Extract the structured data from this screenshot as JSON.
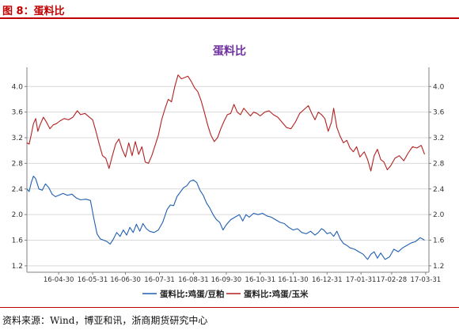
{
  "figure": {
    "label": "图 8：蛋料比"
  },
  "source": {
    "text": "资料来源：Wind，博亚和讯，浙商期货研究中心"
  },
  "colors": {
    "header": "#c00000",
    "title": "#7030a0",
    "series1": "#1f5fb0",
    "series2": "#b22222",
    "grid": "#d9d9d9"
  },
  "chart_data": {
    "type": "line",
    "title": "蛋料比",
    "xlabel": "",
    "ylabel": "",
    "ylim": [
      1.1,
      4.3
    ],
    "yticks": [
      "1.2",
      "1.6",
      "2.0",
      "2.4",
      "2.8",
      "3.2",
      "3.6",
      "4.0"
    ],
    "xticks": [
      "16-04-30",
      "16-05-31",
      "16-06-30",
      "16-07-31",
      "16-08-31",
      "16-09-30",
      "16-10-31",
      "16-11-30",
      "16-12-31",
      "17-01-31",
      "17-02-28",
      "17-03-31"
    ],
    "xrange": [
      "2016-04-01",
      "2017-04-03"
    ],
    "grid": true,
    "legend": "bottom",
    "series": [
      {
        "name": "蛋料比:鸡蛋/豆粕",
        "points": [
          [
            "2016-04-01",
            2.4
          ],
          [
            "2016-04-03",
            2.36
          ],
          [
            "2016-04-05",
            2.5
          ],
          [
            "2016-04-07",
            2.6
          ],
          [
            "2016-04-09",
            2.56
          ],
          [
            "2016-04-12",
            2.4
          ],
          [
            "2016-04-15",
            2.38
          ],
          [
            "2016-04-18",
            2.48
          ],
          [
            "2016-04-21",
            2.42
          ],
          [
            "2016-04-24",
            2.32
          ],
          [
            "2016-04-27",
            2.28
          ],
          [
            "2016-04-30",
            2.3
          ],
          [
            "2016-05-04",
            2.33
          ],
          [
            "2016-05-08",
            2.3
          ],
          [
            "2016-05-12",
            2.32
          ],
          [
            "2016-05-16",
            2.26
          ],
          [
            "2016-05-20",
            2.23
          ],
          [
            "2016-05-25",
            2.24
          ],
          [
            "2016-05-29",
            2.22
          ],
          [
            "2016-06-01",
            1.95
          ],
          [
            "2016-06-04",
            1.7
          ],
          [
            "2016-06-07",
            1.62
          ],
          [
            "2016-06-10",
            1.6
          ],
          [
            "2016-06-13",
            1.58
          ],
          [
            "2016-06-16",
            1.54
          ],
          [
            "2016-06-19",
            1.62
          ],
          [
            "2016-06-22",
            1.72
          ],
          [
            "2016-06-25",
            1.66
          ],
          [
            "2016-06-28",
            1.76
          ],
          [
            "2016-07-01",
            1.68
          ],
          [
            "2016-07-04",
            1.8
          ],
          [
            "2016-07-07",
            1.72
          ],
          [
            "2016-07-10",
            1.85
          ],
          [
            "2016-07-13",
            1.74
          ],
          [
            "2016-07-16",
            1.86
          ],
          [
            "2016-07-19",
            1.78
          ],
          [
            "2016-07-22",
            1.74
          ],
          [
            "2016-07-26",
            1.72
          ],
          [
            "2016-07-30",
            1.76
          ],
          [
            "2016-08-03",
            1.88
          ],
          [
            "2016-08-07",
            2.08
          ],
          [
            "2016-08-10",
            2.15
          ],
          [
            "2016-08-13",
            2.14
          ],
          [
            "2016-08-16",
            2.28
          ],
          [
            "2016-08-19",
            2.35
          ],
          [
            "2016-08-22",
            2.42
          ],
          [
            "2016-08-25",
            2.45
          ],
          [
            "2016-08-28",
            2.52
          ],
          [
            "2016-08-31",
            2.54
          ],
          [
            "2016-09-03",
            2.5
          ],
          [
            "2016-09-06",
            2.38
          ],
          [
            "2016-09-09",
            2.3
          ],
          [
            "2016-09-12",
            2.18
          ],
          [
            "2016-09-15",
            2.1
          ],
          [
            "2016-09-18",
            2.0
          ],
          [
            "2016-09-21",
            1.92
          ],
          [
            "2016-09-24",
            1.88
          ],
          [
            "2016-09-27",
            1.76
          ],
          [
            "2016-09-30",
            1.84
          ],
          [
            "2016-10-04",
            1.92
          ],
          [
            "2016-10-08",
            1.96
          ],
          [
            "2016-10-12",
            2.0
          ],
          [
            "2016-10-15",
            1.9
          ],
          [
            "2016-10-18",
            2.0
          ],
          [
            "2016-10-21",
            1.96
          ],
          [
            "2016-10-25",
            2.02
          ],
          [
            "2016-10-29",
            2.0
          ],
          [
            "2016-11-02",
            2.02
          ],
          [
            "2016-11-06",
            1.98
          ],
          [
            "2016-11-10",
            1.96
          ],
          [
            "2016-11-14",
            1.92
          ],
          [
            "2016-11-18",
            1.88
          ],
          [
            "2016-11-22",
            1.86
          ],
          [
            "2016-11-26",
            1.8
          ],
          [
            "2016-11-30",
            1.76
          ],
          [
            "2016-12-04",
            1.78
          ],
          [
            "2016-12-08",
            1.72
          ],
          [
            "2016-12-12",
            1.7
          ],
          [
            "2016-12-16",
            1.74
          ],
          [
            "2016-12-20",
            1.68
          ],
          [
            "2016-12-23",
            1.72
          ],
          [
            "2016-12-26",
            1.78
          ],
          [
            "2016-12-28",
            1.76
          ],
          [
            "2016-12-31",
            1.7
          ],
          [
            "2017-01-03",
            1.72
          ],
          [
            "2017-01-06",
            1.66
          ],
          [
            "2017-01-09",
            1.74
          ],
          [
            "2017-01-12",
            1.62
          ],
          [
            "2017-01-15",
            1.55
          ],
          [
            "2017-01-18",
            1.52
          ],
          [
            "2017-01-21",
            1.48
          ],
          [
            "2017-01-25",
            1.46
          ],
          [
            "2017-01-29",
            1.42
          ],
          [
            "2017-02-02",
            1.38
          ],
          [
            "2017-02-06",
            1.3
          ],
          [
            "2017-02-09",
            1.38
          ],
          [
            "2017-02-12",
            1.42
          ],
          [
            "2017-02-15",
            1.32
          ],
          [
            "2017-02-18",
            1.4
          ],
          [
            "2017-02-22",
            1.3
          ],
          [
            "2017-02-26",
            1.34
          ],
          [
            "2017-03-02",
            1.46
          ],
          [
            "2017-03-06",
            1.42
          ],
          [
            "2017-03-10",
            1.48
          ],
          [
            "2017-03-14",
            1.52
          ],
          [
            "2017-03-18",
            1.56
          ],
          [
            "2017-03-22",
            1.58
          ],
          [
            "2017-03-26",
            1.64
          ],
          [
            "2017-03-30",
            1.6
          ]
        ]
      },
      {
        "name": "蛋料比:鸡蛋/玉米",
        "points": [
          [
            "2016-04-01",
            3.12
          ],
          [
            "2016-04-03",
            3.1
          ],
          [
            "2016-04-05",
            3.25
          ],
          [
            "2016-04-07",
            3.42
          ],
          [
            "2016-04-09",
            3.5
          ],
          [
            "2016-04-11",
            3.3
          ],
          [
            "2016-04-13",
            3.4
          ],
          [
            "2016-04-16",
            3.52
          ],
          [
            "2016-04-19",
            3.44
          ],
          [
            "2016-04-22",
            3.34
          ],
          [
            "2016-04-25",
            3.4
          ],
          [
            "2016-04-28",
            3.42
          ],
          [
            "2016-05-01",
            3.46
          ],
          [
            "2016-05-05",
            3.5
          ],
          [
            "2016-05-09",
            3.48
          ],
          [
            "2016-05-13",
            3.52
          ],
          [
            "2016-05-17",
            3.62
          ],
          [
            "2016-05-20",
            3.56
          ],
          [
            "2016-05-24",
            3.58
          ],
          [
            "2016-05-28",
            3.52
          ],
          [
            "2016-05-31",
            3.48
          ],
          [
            "2016-06-03",
            3.3
          ],
          [
            "2016-06-06",
            3.1
          ],
          [
            "2016-06-09",
            2.92
          ],
          [
            "2016-06-12",
            2.88
          ],
          [
            "2016-06-15",
            2.72
          ],
          [
            "2016-06-18",
            2.92
          ],
          [
            "2016-06-21",
            3.1
          ],
          [
            "2016-06-24",
            3.18
          ],
          [
            "2016-06-27",
            3.02
          ],
          [
            "2016-06-30",
            2.9
          ],
          [
            "2016-07-03",
            3.12
          ],
          [
            "2016-07-06",
            2.92
          ],
          [
            "2016-07-09",
            3.14
          ],
          [
            "2016-07-12",
            2.94
          ],
          [
            "2016-07-15",
            3.06
          ],
          [
            "2016-07-18",
            2.82
          ],
          [
            "2016-07-21",
            2.8
          ],
          [
            "2016-07-24",
            2.92
          ],
          [
            "2016-07-27",
            3.08
          ],
          [
            "2016-07-30",
            3.24
          ],
          [
            "2016-08-02",
            3.48
          ],
          [
            "2016-08-05",
            3.65
          ],
          [
            "2016-08-08",
            3.8
          ],
          [
            "2016-08-11",
            3.76
          ],
          [
            "2016-08-14",
            4.0
          ],
          [
            "2016-08-17",
            4.18
          ],
          [
            "2016-08-20",
            4.12
          ],
          [
            "2016-08-23",
            4.14
          ],
          [
            "2016-08-26",
            4.16
          ],
          [
            "2016-08-29",
            4.08
          ],
          [
            "2016-09-01",
            3.98
          ],
          [
            "2016-09-04",
            3.92
          ],
          [
            "2016-09-07",
            3.78
          ],
          [
            "2016-09-10",
            3.6
          ],
          [
            "2016-09-13",
            3.4
          ],
          [
            "2016-09-16",
            3.24
          ],
          [
            "2016-09-19",
            3.14
          ],
          [
            "2016-09-22",
            3.2
          ],
          [
            "2016-09-25",
            3.34
          ],
          [
            "2016-09-28",
            3.46
          ],
          [
            "2016-10-01",
            3.56
          ],
          [
            "2016-10-04",
            3.58
          ],
          [
            "2016-10-07",
            3.72
          ],
          [
            "2016-10-10",
            3.6
          ],
          [
            "2016-10-13",
            3.56
          ],
          [
            "2016-10-16",
            3.66
          ],
          [
            "2016-10-19",
            3.6
          ],
          [
            "2016-10-22",
            3.54
          ],
          [
            "2016-10-25",
            3.6
          ],
          [
            "2016-10-28",
            3.58
          ],
          [
            "2016-10-31",
            3.54
          ],
          [
            "2016-11-04",
            3.6
          ],
          [
            "2016-11-08",
            3.62
          ],
          [
            "2016-11-12",
            3.56
          ],
          [
            "2016-11-16",
            3.52
          ],
          [
            "2016-11-20",
            3.44
          ],
          [
            "2016-11-24",
            3.36
          ],
          [
            "2016-11-28",
            3.34
          ],
          [
            "2016-12-02",
            3.44
          ],
          [
            "2016-12-06",
            3.58
          ],
          [
            "2016-12-10",
            3.64
          ],
          [
            "2016-12-14",
            3.7
          ],
          [
            "2016-12-17",
            3.58
          ],
          [
            "2016-12-20",
            3.48
          ],
          [
            "2016-12-23",
            3.6
          ],
          [
            "2016-12-26",
            3.56
          ],
          [
            "2016-12-29",
            3.5
          ],
          [
            "2017-01-01",
            3.3
          ],
          [
            "2017-01-04",
            3.44
          ],
          [
            "2017-01-06",
            3.66
          ],
          [
            "2017-01-09",
            3.36
          ],
          [
            "2017-01-12",
            3.22
          ],
          [
            "2017-01-15",
            3.12
          ],
          [
            "2017-01-18",
            3.16
          ],
          [
            "2017-01-21",
            3.04
          ],
          [
            "2017-01-24",
            2.98
          ],
          [
            "2017-01-27",
            3.06
          ],
          [
            "2017-01-30",
            2.9
          ],
          [
            "2017-02-03",
            2.98
          ],
          [
            "2017-02-06",
            2.86
          ],
          [
            "2017-02-09",
            2.68
          ],
          [
            "2017-02-12",
            2.92
          ],
          [
            "2017-02-15",
            3.02
          ],
          [
            "2017-02-18",
            2.86
          ],
          [
            "2017-02-21",
            2.82
          ],
          [
            "2017-02-24",
            2.7
          ],
          [
            "2017-02-27",
            2.76
          ],
          [
            "2017-03-03",
            2.88
          ],
          [
            "2017-03-07",
            2.92
          ],
          [
            "2017-03-11",
            2.84
          ],
          [
            "2017-03-15",
            2.96
          ],
          [
            "2017-03-19",
            3.06
          ],
          [
            "2017-03-23",
            3.04
          ],
          [
            "2017-03-27",
            3.08
          ],
          [
            "2017-03-30",
            2.94
          ]
        ]
      }
    ]
  }
}
